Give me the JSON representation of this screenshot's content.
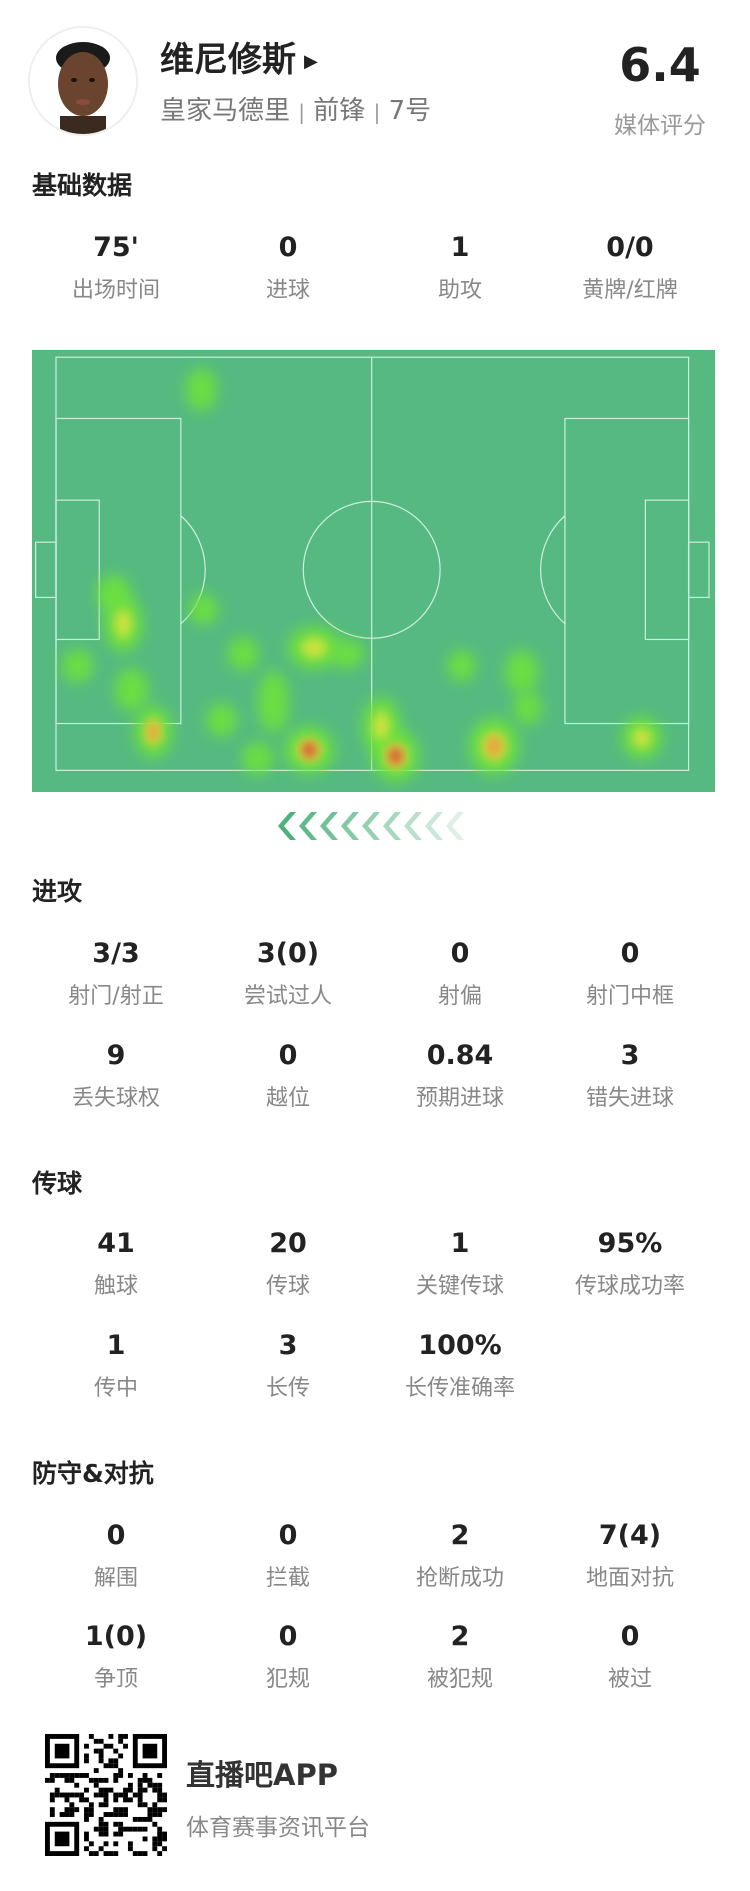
{
  "player": {
    "name": "维尼修斯",
    "team": "皇家马德里",
    "position": "前锋",
    "number": "7号",
    "separator": "|",
    "rating": "6.4",
    "rating_label": "媒体评分"
  },
  "sections": {
    "basic": {
      "title": "基础数据",
      "stats": [
        {
          "value": "75'",
          "label": "出场时间"
        },
        {
          "value": "0",
          "label": "进球"
        },
        {
          "value": "1",
          "label": "助攻"
        },
        {
          "value": "0/0",
          "label": "黄牌/红牌"
        }
      ]
    },
    "attack": {
      "title": "进攻",
      "stats": [
        {
          "value": "3/3",
          "label": "射门/射正"
        },
        {
          "value": "3(0)",
          "label": "尝试过人"
        },
        {
          "value": "0",
          "label": "射偏"
        },
        {
          "value": "0",
          "label": "射门中框"
        },
        {
          "value": "9",
          "label": "丢失球权"
        },
        {
          "value": "0",
          "label": "越位"
        },
        {
          "value": "0.84",
          "label": "预期进球"
        },
        {
          "value": "3",
          "label": "错失进球"
        }
      ]
    },
    "passing": {
      "title": "传球",
      "stats": [
        {
          "value": "41",
          "label": "触球"
        },
        {
          "value": "20",
          "label": "传球"
        },
        {
          "value": "1",
          "label": "关键传球"
        },
        {
          "value": "95%",
          "label": "传球成功率"
        },
        {
          "value": "1",
          "label": "传中"
        },
        {
          "value": "3",
          "label": "长传"
        },
        {
          "value": "100%",
          "label": "长传准确率"
        }
      ]
    },
    "defense": {
      "title": "防守&对抗",
      "stats": [
        {
          "value": "0",
          "label": "解围"
        },
        {
          "value": "0",
          "label": "拦截"
        },
        {
          "value": "2",
          "label": "抢断成功"
        },
        {
          "value": "7(4)",
          "label": "地面对抗"
        },
        {
          "value": "1(0)",
          "label": "争顶"
        },
        {
          "value": "0",
          "label": "犯规"
        },
        {
          "value": "2",
          "label": "被犯规"
        },
        {
          "value": "0",
          "label": "被过"
        }
      ]
    }
  },
  "heatmap": {
    "pitch_color": "#55b981",
    "line_color": "#cfeedd",
    "attack_direction": "left"
  },
  "footer": {
    "app_name": "直播吧APP",
    "slogan": "体育赛事资讯平台"
  },
  "icons": {
    "chevron": "chevron-left-icon",
    "name_arrow": "triangle-right-icon"
  }
}
